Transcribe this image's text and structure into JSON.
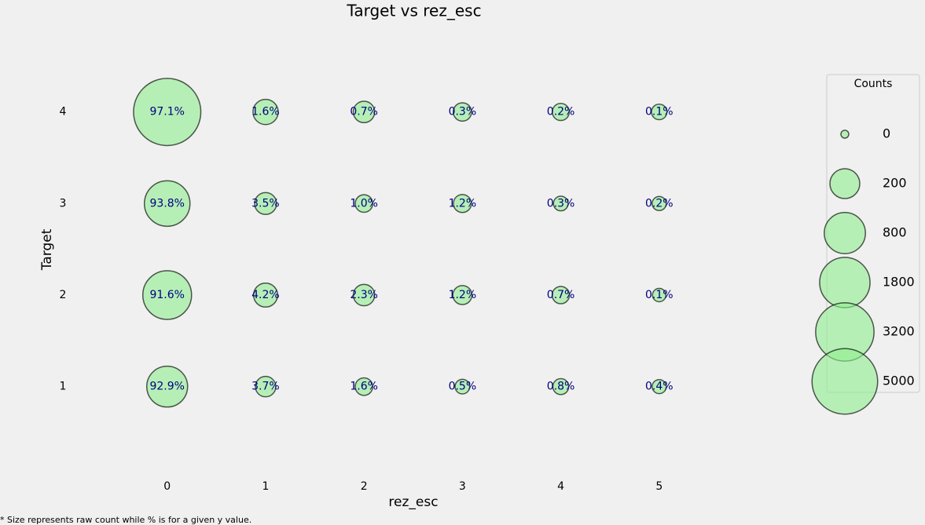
{
  "chart_data": {
    "type": "scatter",
    "title": "Target vs rez_esc",
    "x_label": "rez_esc",
    "y_label": "Target",
    "footnote": "* Size represents raw count while % is for a given y value.",
    "x": [
      0,
      1,
      2,
      3,
      4,
      5,
      0,
      1,
      2,
      3,
      4,
      5,
      0,
      1,
      2,
      3,
      4,
      5,
      0,
      1,
      2,
      3,
      4,
      5
    ],
    "y": [
      4,
      4,
      4,
      4,
      4,
      4,
      3,
      3,
      3,
      3,
      3,
      3,
      2,
      2,
      2,
      2,
      2,
      2,
      1,
      1,
      1,
      1,
      1,
      1
    ],
    "sizes": [
      5500,
      91,
      40,
      17,
      11,
      6,
      1210,
      45,
      13,
      15,
      4,
      3,
      1580,
      72,
      40,
      21,
      12,
      2,
      775,
      31,
      13,
      4,
      7,
      3
    ],
    "percents": [
      97.1,
      1.6,
      0.7,
      0.3,
      0.2,
      0.1,
      93.8,
      3.5,
      1.0,
      1.2,
      0.3,
      0.2,
      91.6,
      4.2,
      2.3,
      1.2,
      0.7,
      0.1,
      92.9,
      3.7,
      1.6,
      0.5,
      0.8,
      0.4
    ],
    "value_labels": [
      "97.1%",
      "1.6%",
      "0.7%",
      "0.3%",
      "0.2%",
      "0.1%",
      "93.8%",
      "3.5%",
      "1.0%",
      "1.2%",
      "0.3%",
      "0.2%",
      "91.6%",
      "4.2%",
      "2.3%",
      "1.2%",
      "0.7%",
      "0.1%",
      "92.9%",
      "3.7%",
      "1.6%",
      "0.5%",
      "0.8%",
      "0.4%"
    ],
    "color": "#90ee90",
    "label_color": "#000080",
    "xlim": [
      -1.1,
      6.0
    ],
    "ylim": [
      0.2,
      4.7
    ],
    "xticks": [
      0,
      1,
      2,
      3,
      4,
      5
    ],
    "yticks": [
      1,
      2,
      3,
      4
    ],
    "grid": false,
    "size_legend": {
      "title": "Counts",
      "values": [
        0,
        200,
        800,
        1800,
        3200,
        5000
      ]
    }
  }
}
